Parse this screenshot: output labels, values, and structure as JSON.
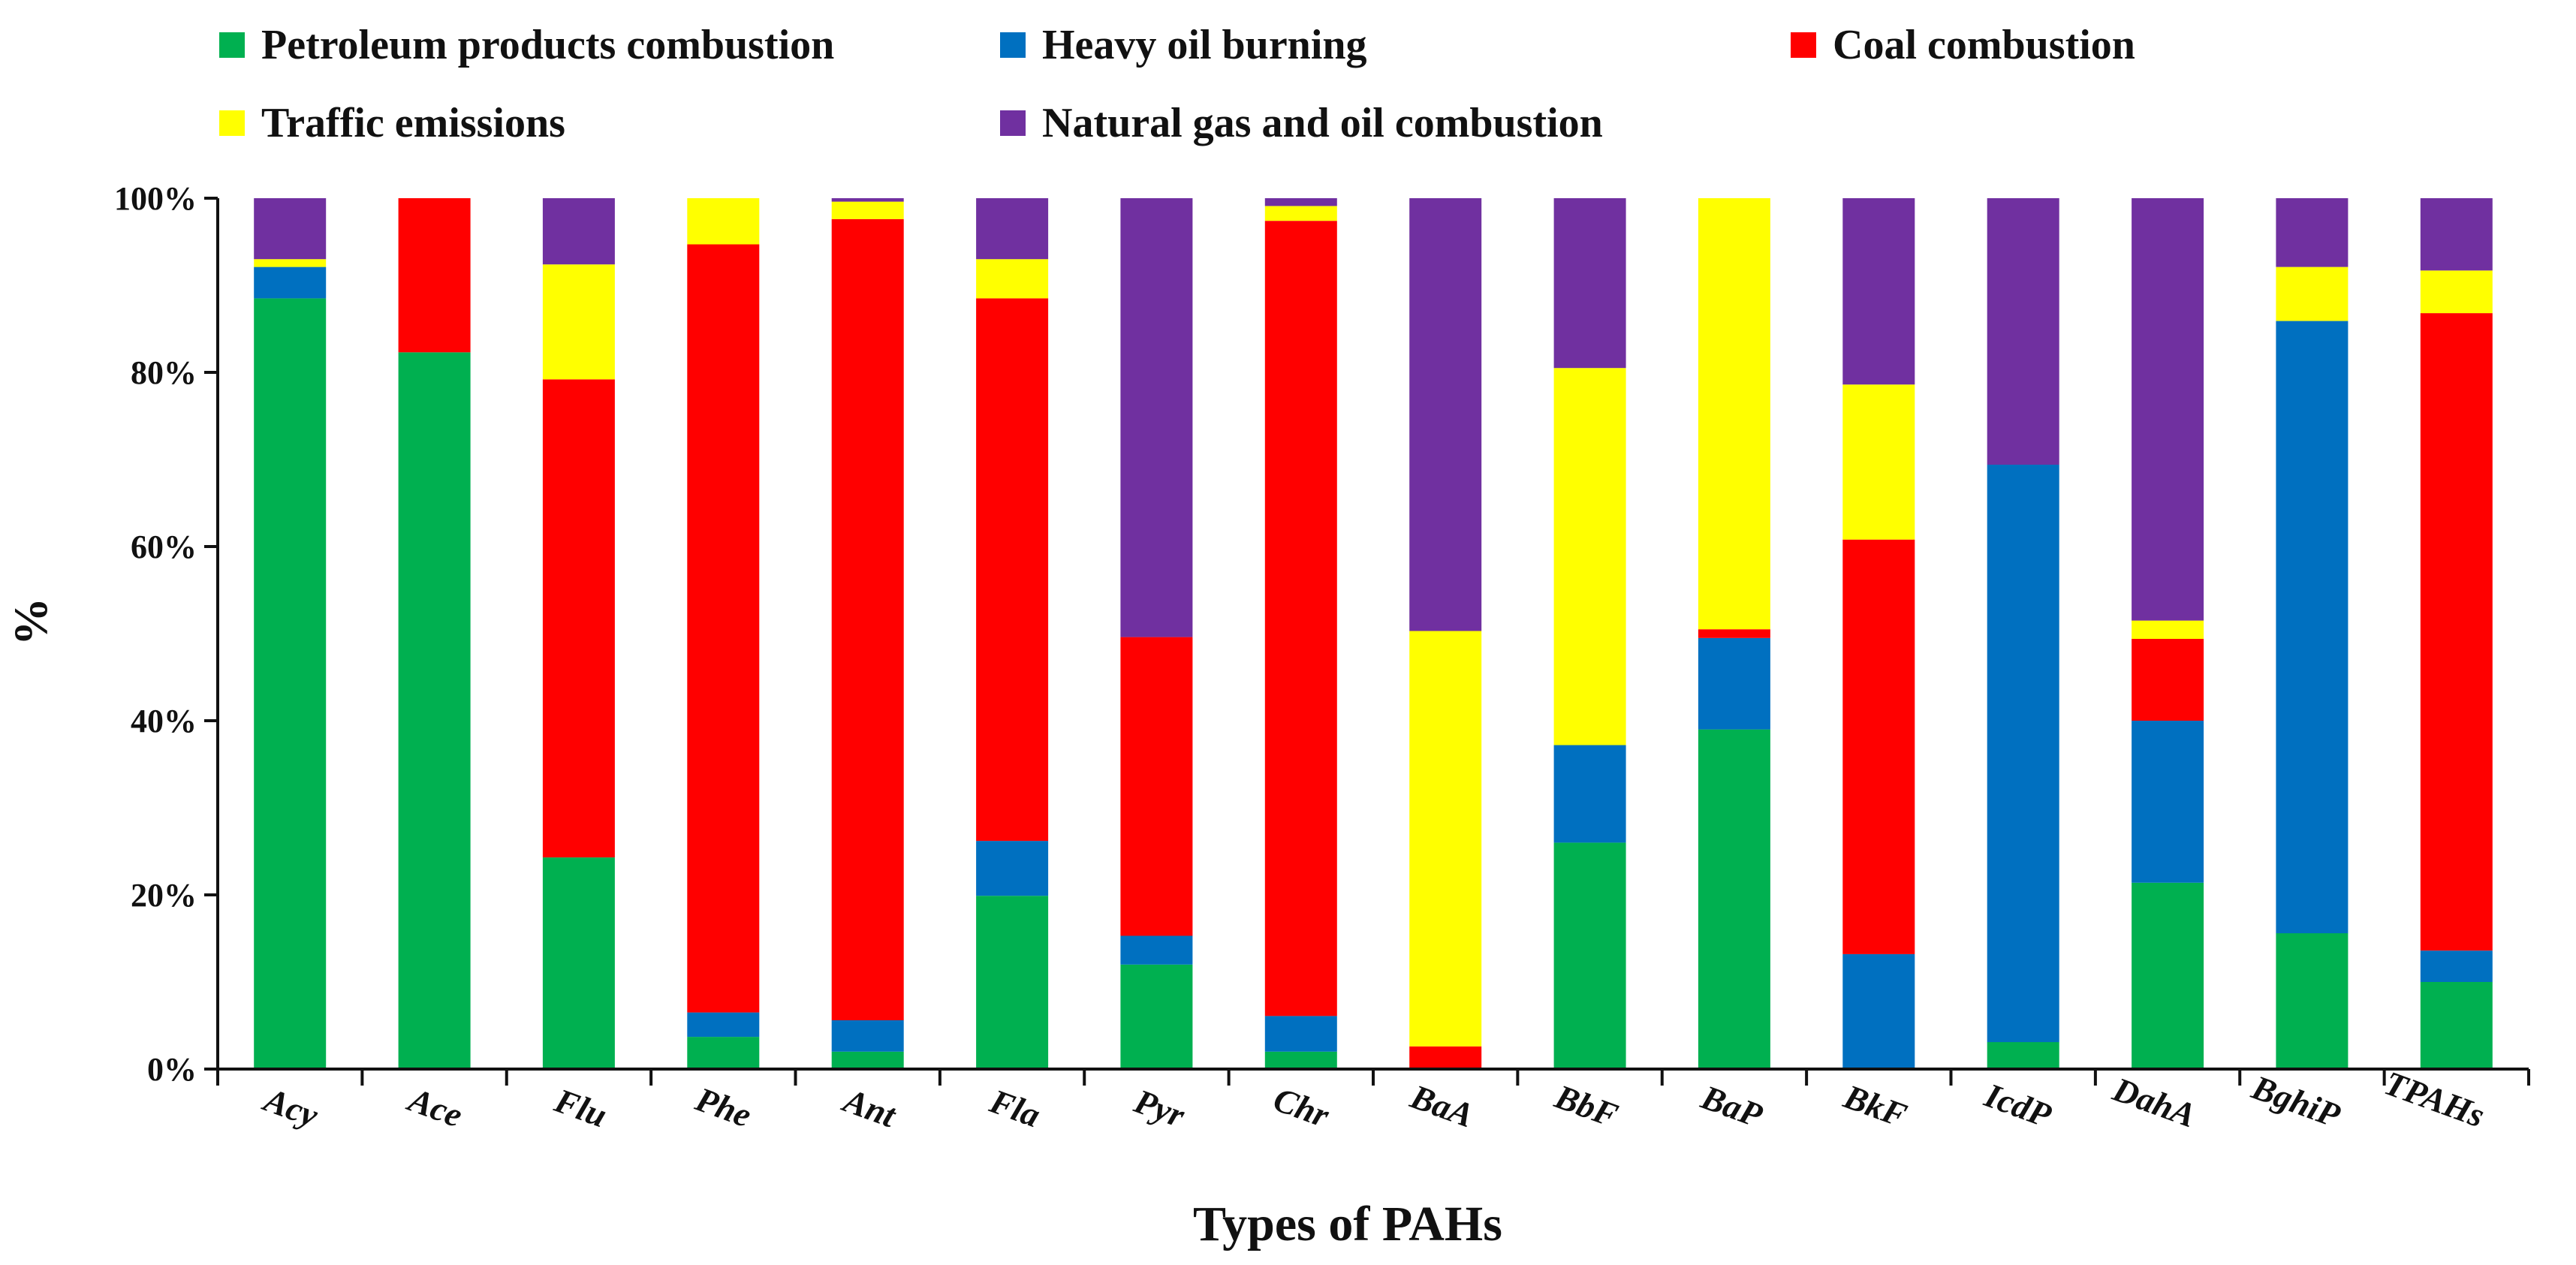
{
  "chart_data": {
    "type": "bar",
    "stacked": true,
    "title": "",
    "xlabel": "Types of PAHs",
    "ylabel": "%",
    "ylim": [
      0,
      100
    ],
    "yticks": [
      "0%",
      "20%",
      "40%",
      "60%",
      "80%",
      "100%"
    ],
    "legend_position": "top",
    "categories": [
      "Acy",
      "Ace",
      "Flu",
      "Phe",
      "Ant",
      "Fla",
      "Pyr",
      "Chr",
      "BaA",
      "BbF",
      "BaP",
      "BkF",
      "IcdP",
      "DahA",
      "BghiP",
      "TPAHs"
    ],
    "series": [
      {
        "name": "Petroleum products combustion",
        "color": "#00b050",
        "values": [
          88.5,
          82.3,
          24.3,
          3.7,
          2.0,
          19.9,
          12.0,
          2.0,
          0.0,
          26.0,
          39.0,
          0.0,
          3.1,
          21.4,
          15.6,
          10.0
        ]
      },
      {
        "name": "Heavy oil burning",
        "color": "#0070c0",
        "values": [
          3.6,
          0.0,
          0.0,
          2.8,
          3.6,
          6.3,
          3.3,
          4.1,
          0.0,
          11.2,
          10.5,
          13.2,
          66.3,
          18.6,
          70.3,
          3.6
        ]
      },
      {
        "name": "Coal combustion",
        "color": "#ff0000",
        "values": [
          0.0,
          17.7,
          54.9,
          88.2,
          92.0,
          62.3,
          34.3,
          91.3,
          2.6,
          0.0,
          1.0,
          47.6,
          0.0,
          9.4,
          0.0,
          73.2
        ]
      },
      {
        "name": "Traffic emissions",
        "color": "#ffff00",
        "values": [
          0.9,
          0.0,
          13.2,
          5.3,
          2.0,
          4.5,
          0.0,
          1.7,
          47.7,
          43.3,
          49.5,
          17.8,
          0.0,
          2.1,
          6.2,
          4.9
        ]
      },
      {
        "name": "Natural gas and oil combustion",
        "color": "#7030a0",
        "values": [
          7.0,
          0.0,
          7.6,
          0.0,
          0.4,
          7.0,
          50.4,
          0.9,
          49.7,
          19.5,
          0.0,
          21.4,
          30.6,
          48.5,
          7.9,
          8.3
        ]
      }
    ]
  }
}
